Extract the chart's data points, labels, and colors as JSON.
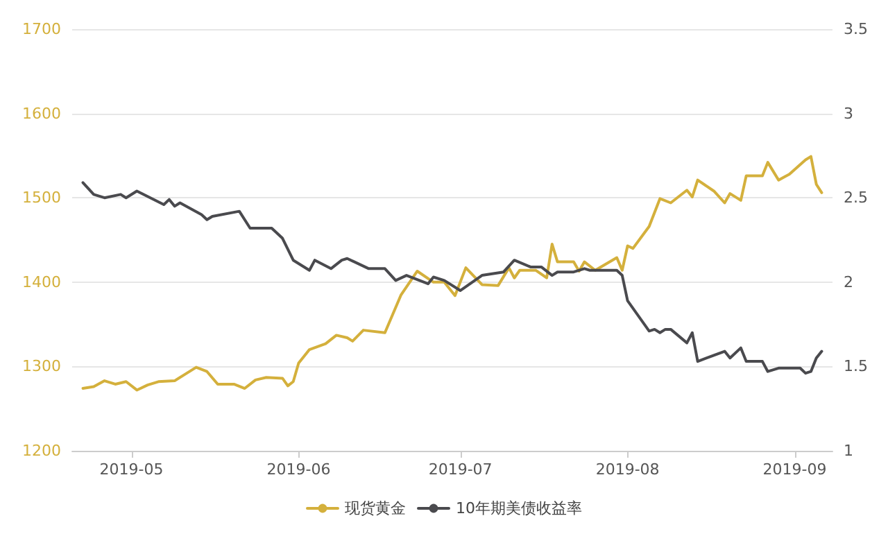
{
  "chart_data": {
    "type": "line",
    "series": [
      {
        "name": "现货黄金",
        "color": "#d4b03c",
        "x": [
          "2019-04-22",
          "2019-04-24",
          "2019-04-26",
          "2019-04-28",
          "2019-04-30",
          "2019-05-02",
          "2019-05-04",
          "2019-05-06",
          "2019-05-09",
          "2019-05-11",
          "2019-05-13",
          "2019-05-15",
          "2019-05-17",
          "2019-05-20",
          "2019-05-22",
          "2019-05-24",
          "2019-05-26",
          "2019-05-29",
          "2019-05-30",
          "2019-05-31",
          "2019-06-01",
          "2019-06-03",
          "2019-06-06",
          "2019-06-08",
          "2019-06-10",
          "2019-06-11",
          "2019-06-13",
          "2019-06-17",
          "2019-06-20",
          "2019-06-23",
          "2019-06-26",
          "2019-06-28",
          "2019-06-30",
          "2019-07-02",
          "2019-07-05",
          "2019-07-08",
          "2019-07-10",
          "2019-07-11",
          "2019-07-12",
          "2019-07-15",
          "2019-07-17",
          "2019-07-18",
          "2019-07-19",
          "2019-07-22",
          "2019-07-23",
          "2019-07-24",
          "2019-07-26",
          "2019-07-30",
          "2019-07-31",
          "2019-08-01",
          "2019-08-02",
          "2019-08-05",
          "2019-08-07",
          "2019-08-09",
          "2019-08-12",
          "2019-08-13",
          "2019-08-14",
          "2019-08-17",
          "2019-08-19",
          "2019-08-20",
          "2019-08-22",
          "2019-08-23",
          "2019-08-26",
          "2019-08-27",
          "2019-08-29",
          "2019-08-31",
          "2019-09-03",
          "2019-09-04",
          "2019-09-05",
          "2019-09-06"
        ],
        "values": [
          1274,
          1276,
          1283,
          1279,
          1282,
          1272,
          1278,
          1282,
          1283,
          1291,
          1299,
          1294,
          1279,
          1279,
          1274,
          1284,
          1287,
          1286,
          1277,
          1282,
          1304,
          1320,
          1327,
          1337,
          1334,
          1330,
          1343,
          1340,
          1385,
          1413,
          1400,
          1400,
          1384,
          1417,
          1397,
          1396,
          1417,
          1405,
          1414,
          1414,
          1405,
          1445,
          1424,
          1424,
          1413,
          1424,
          1414,
          1429,
          1414,
          1443,
          1440,
          1466,
          1499,
          1494,
          1509,
          1501,
          1521,
          1508,
          1494,
          1505,
          1497,
          1526,
          1526,
          1542,
          1521,
          1528,
          1545,
          1549,
          1516,
          1506
        ]
      },
      {
        "name": "10年期美债收益率",
        "color": "#4a4a4e",
        "axis": "y2",
        "x": [
          "2019-04-22",
          "2019-04-24",
          "2019-04-26",
          "2019-04-29",
          "2019-04-30",
          "2019-05-02",
          "2019-05-07",
          "2019-05-08",
          "2019-05-09",
          "2019-05-10",
          "2019-05-14",
          "2019-05-15",
          "2019-05-16",
          "2019-05-21",
          "2019-05-23",
          "2019-05-27",
          "2019-05-29",
          "2019-05-31",
          "2019-06-03",
          "2019-06-04",
          "2019-06-07",
          "2019-06-09",
          "2019-06-10",
          "2019-06-14",
          "2019-06-17",
          "2019-06-19",
          "2019-06-21",
          "2019-06-25",
          "2019-06-26",
          "2019-06-28",
          "2019-07-01",
          "2019-07-05",
          "2019-07-09",
          "2019-07-11",
          "2019-07-14",
          "2019-07-16",
          "2019-07-18",
          "2019-07-19",
          "2019-07-22",
          "2019-07-24",
          "2019-07-25",
          "2019-07-30",
          "2019-07-31",
          "2019-08-01",
          "2019-08-05",
          "2019-08-06",
          "2019-08-07",
          "2019-08-08",
          "2019-08-09",
          "2019-08-12",
          "2019-08-13",
          "2019-08-14",
          "2019-08-19",
          "2019-08-20",
          "2019-08-22",
          "2019-08-23",
          "2019-08-26",
          "2019-08-27",
          "2019-08-29",
          "2019-09-02",
          "2019-09-03",
          "2019-09-04",
          "2019-09-05",
          "2019-09-06"
        ],
        "values": [
          2.59,
          2.52,
          2.5,
          2.52,
          2.5,
          2.54,
          2.46,
          2.49,
          2.45,
          2.47,
          2.4,
          2.37,
          2.39,
          2.42,
          2.32,
          2.32,
          2.26,
          2.13,
          2.07,
          2.13,
          2.08,
          2.13,
          2.14,
          2.08,
          2.08,
          2.01,
          2.04,
          1.99,
          2.03,
          2.01,
          1.95,
          2.04,
          2.06,
          2.13,
          2.09,
          2.09,
          2.04,
          2.06,
          2.06,
          2.08,
          2.07,
          2.07,
          2.04,
          1.89,
          1.71,
          1.72,
          1.7,
          1.72,
          1.72,
          1.64,
          1.7,
          1.53,
          1.59,
          1.55,
          1.61,
          1.53,
          1.53,
          1.47,
          1.49,
          1.49,
          1.46,
          1.47,
          1.55,
          1.59
        ]
      }
    ],
    "xlim": [
      "2019-04-20",
      "2019-09-08"
    ],
    "xticks": [
      "2019-05",
      "2019-06",
      "2019-07",
      "2019-08",
      "2019-09"
    ],
    "ylim": [
      1200,
      1700
    ],
    "yticks": [
      1200,
      1300,
      1400,
      1500,
      1600,
      1700
    ],
    "y2lim": [
      1,
      3.5
    ],
    "y2ticks": [
      1,
      1.5,
      2,
      2.5,
      3,
      3.5
    ],
    "grid": "y",
    "legend": "bottom",
    "marker": "none",
    "line_style": "solid"
  }
}
